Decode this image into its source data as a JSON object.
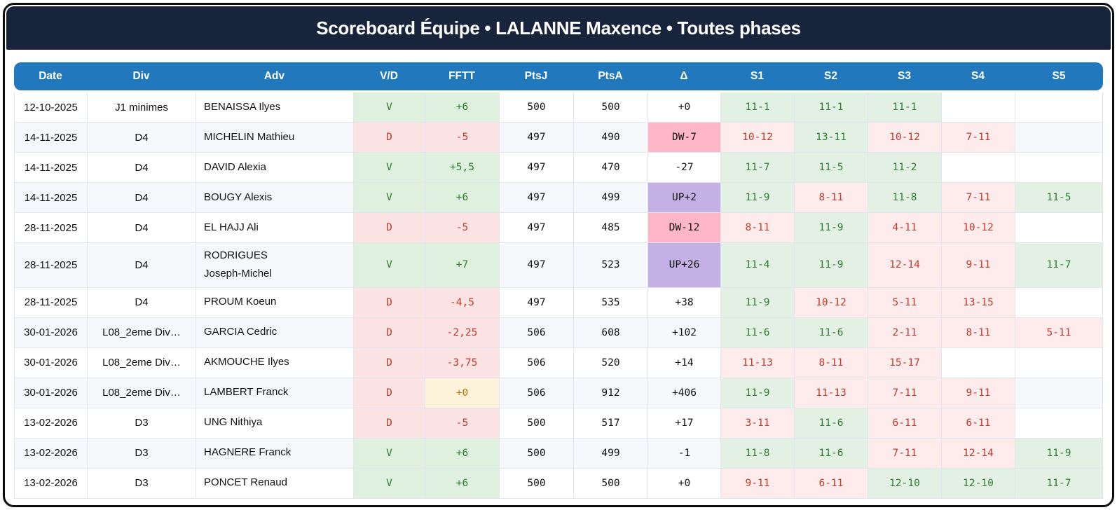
{
  "title": "Scoreboard Équipe • LALANNE Maxence • Toutes phases",
  "table": {
    "headers": [
      "Date",
      "Div",
      "Adv",
      "V/D",
      "FFTT",
      "PtsJ",
      "PtsA",
      "Δ",
      "S1",
      "S2",
      "S3",
      "S4",
      "S5"
    ],
    "rows": [
      {
        "date": "12-10-2025",
        "div": "J1 minimes",
        "adv": "BENAISSA Ilyes",
        "vd": "V",
        "fftt": "+6",
        "ptsj": "500",
        "ptsa": "500",
        "delta": "+0",
        "sets": [
          "11-1",
          "11-1",
          "11-1",
          "",
          ""
        ]
      },
      {
        "date": "14-11-2025",
        "div": "D4",
        "adv": "MICHELIN Mathieu",
        "vd": "D",
        "fftt": "-5",
        "ptsj": "497",
        "ptsa": "490",
        "delta": "DW-7",
        "sets": [
          "10-12",
          "13-11",
          "10-12",
          "7-11",
          ""
        ]
      },
      {
        "date": "14-11-2025",
        "div": "D4",
        "adv": "DAVID Alexia",
        "vd": "V",
        "fftt": "+5,5",
        "ptsj": "497",
        "ptsa": "470",
        "delta": "-27",
        "sets": [
          "11-7",
          "11-5",
          "11-2",
          "",
          ""
        ]
      },
      {
        "date": "14-11-2025",
        "div": "D4",
        "adv": "BOUGY Alexis",
        "vd": "V",
        "fftt": "+6",
        "ptsj": "497",
        "ptsa": "499",
        "delta": "UP+2",
        "sets": [
          "11-9",
          "8-11",
          "11-8",
          "7-11",
          "11-5"
        ]
      },
      {
        "date": "28-11-2025",
        "div": "D4",
        "adv": "EL HAJJ Ali",
        "vd": "D",
        "fftt": "-5",
        "ptsj": "497",
        "ptsa": "485",
        "delta": "DW-12",
        "sets": [
          "8-11",
          "11-9",
          "4-11",
          "10-12",
          ""
        ]
      },
      {
        "date": "28-11-2025",
        "div": "D4",
        "adv": "RODRIGUES\nJoseph-Michel",
        "vd": "V",
        "fftt": "+7",
        "ptsj": "497",
        "ptsa": "523",
        "delta": "UP+26",
        "sets": [
          "11-4",
          "11-9",
          "12-14",
          "9-11",
          "11-7"
        ]
      },
      {
        "date": "28-11-2025",
        "div": "D4",
        "adv": "PROUM Koeun",
        "vd": "D",
        "fftt": "-4,5",
        "ptsj": "497",
        "ptsa": "535",
        "delta": "+38",
        "sets": [
          "11-9",
          "10-12",
          "5-11",
          "13-15",
          ""
        ]
      },
      {
        "date": "30-01-2026",
        "div": "L08_2eme Div…",
        "adv": "GARCIA Cedric",
        "vd": "D",
        "fftt": "-2,25",
        "ptsj": "506",
        "ptsa": "608",
        "delta": "+102",
        "sets": [
          "11-6",
          "11-6",
          "2-11",
          "8-11",
          "5-11"
        ]
      },
      {
        "date": "30-01-2026",
        "div": "L08_2eme Div…",
        "adv": "AKMOUCHE Ilyes",
        "vd": "D",
        "fftt": "-3,75",
        "ptsj": "506",
        "ptsa": "520",
        "delta": "+14",
        "sets": [
          "11-13",
          "8-11",
          "15-17",
          "",
          ""
        ]
      },
      {
        "date": "30-01-2026",
        "div": "L08_2eme Div…",
        "adv": "LAMBERT Franck",
        "vd": "D",
        "fftt": "+0",
        "ptsj": "506",
        "ptsa": "912",
        "delta": "+406",
        "sets": [
          "11-9",
          "11-13",
          "7-11",
          "9-11",
          ""
        ]
      },
      {
        "date": "13-02-2026",
        "div": "D3",
        "adv": "UNG Nithiya",
        "vd": "D",
        "fftt": "-5",
        "ptsj": "500",
        "ptsa": "517",
        "delta": "+17",
        "sets": [
          "3-11",
          "11-6",
          "6-11",
          "6-11",
          ""
        ]
      },
      {
        "date": "13-02-2026",
        "div": "D3",
        "adv": "HAGNERE Franck",
        "vd": "V",
        "fftt": "+6",
        "ptsj": "500",
        "ptsa": "499",
        "delta": "-1",
        "sets": [
          "11-8",
          "11-6",
          "7-11",
          "12-14",
          "11-9"
        ]
      },
      {
        "date": "13-02-2026",
        "div": "D3",
        "adv": "PONCET Renaud",
        "vd": "V",
        "fftt": "+6",
        "ptsj": "500",
        "ptsa": "500",
        "delta": "+0",
        "sets": [
          "9-11",
          "6-11",
          "12-10",
          "12-10",
          "11-7"
        ]
      }
    ]
  },
  "colors": {
    "title_bar": "#18233c",
    "header_bar": "#2278bd",
    "win_bg": "#dff0df",
    "win_text": "#2e7d32",
    "loss_bg": "#fbe3e3",
    "loss_text": "#c0392b",
    "set_win_bg": "#e3f1e5",
    "set_loss_bg": "#fdeceb",
    "neutral_bg": "#fdf3da",
    "neutral_text": "#a87b0b",
    "delta_down_bg": "#ffb6c6",
    "delta_up_bg": "#c4b0e4",
    "row_alt_bg": "#f6f8fc"
  }
}
